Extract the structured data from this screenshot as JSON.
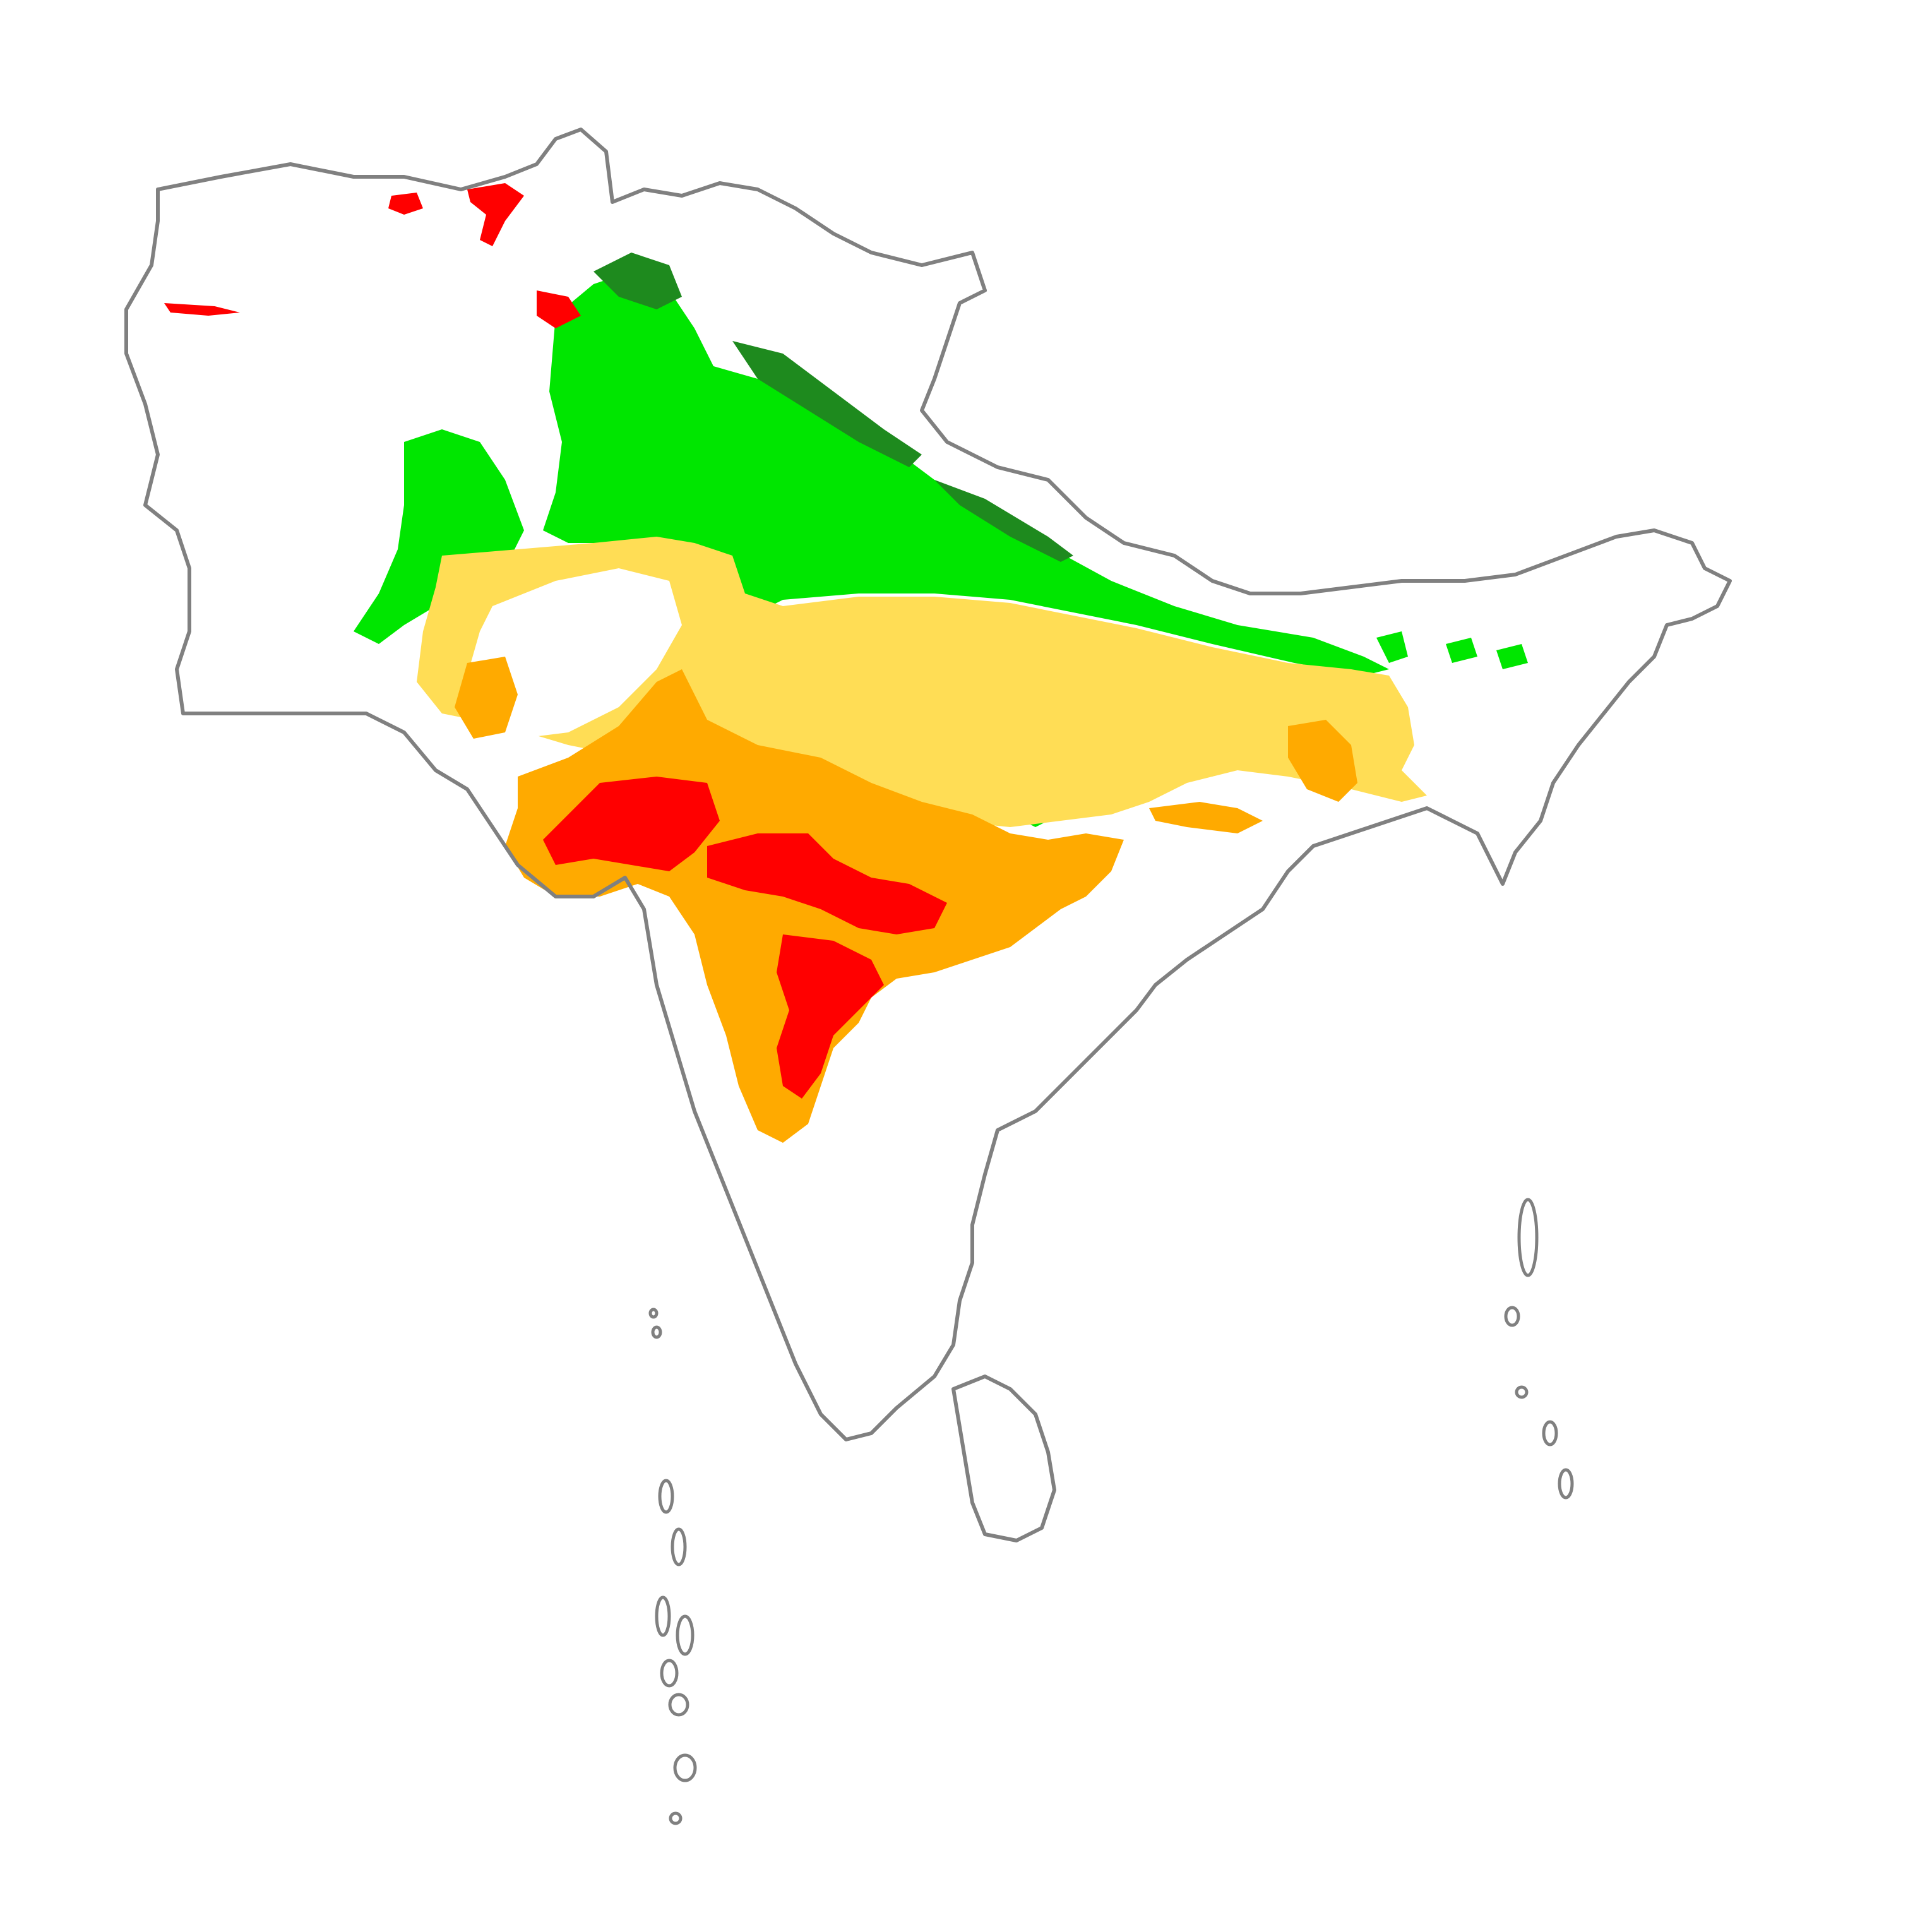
{
  "map": {
    "region": "South Asia",
    "legend_colors": {
      "dark_green": "#1e8a1e",
      "bright_green": "#00e600",
      "light_yellow": "#ffdd55",
      "orange": "#ffaa00",
      "red": "#ff0000",
      "outline": "#808080",
      "background": "#ffffff"
    },
    "layers": [
      {
        "name": "dark-green-zone",
        "color": "#1e8a1e"
      },
      {
        "name": "bright-green-zone",
        "color": "#00e600"
      },
      {
        "name": "light-yellow-zone",
        "color": "#ffdd55"
      },
      {
        "name": "orange-zone",
        "color": "#ffaa00"
      },
      {
        "name": "red-zone",
        "color": "#ff0000"
      }
    ]
  }
}
